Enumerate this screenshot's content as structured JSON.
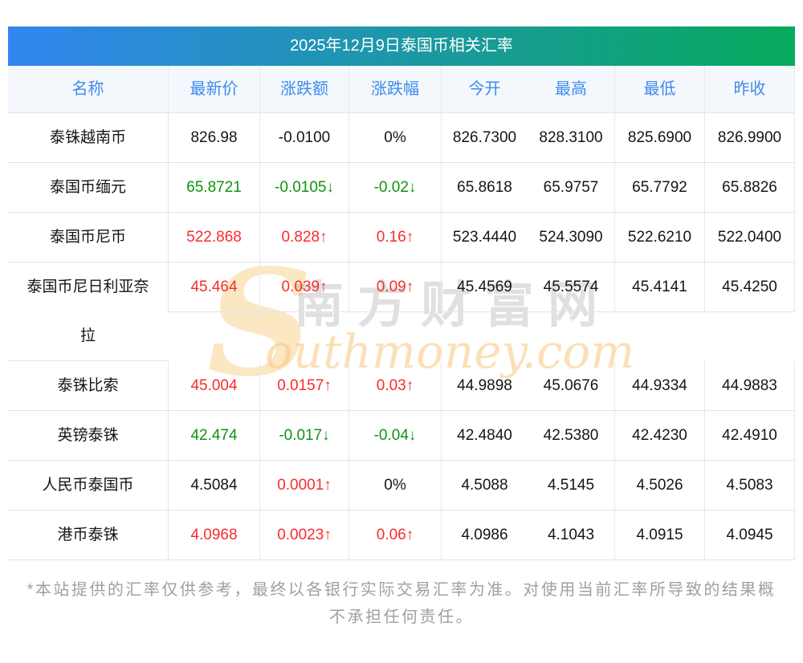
{
  "page": {
    "title_bar": "2025年12月9日泰国币相关汇率",
    "footer": "*本站提供的汇率仅供参考，最终以各银行实际交易汇率为准。对使用当前汇率所导致的结果概不承担任何责任。"
  },
  "watermark": {
    "initial": "S",
    "cn": "南方财富网",
    "en": "outhmoney.com"
  },
  "table": {
    "headers": [
      "名称",
      "最新价",
      "涨跌额",
      "涨跌幅",
      "今开",
      "最高",
      "最低",
      "昨收"
    ],
    "rows": [
      {
        "name": "泰铢越南币",
        "tall": false,
        "cells": [
          {
            "t": "826.98",
            "c": "flat"
          },
          {
            "t": "-0.0100",
            "c": "flat"
          },
          {
            "t": "0%",
            "c": "flat"
          },
          {
            "t": "826.7300"
          },
          {
            "t": "828.3100"
          },
          {
            "t": "825.6900"
          },
          {
            "t": "826.9900"
          }
        ]
      },
      {
        "name": "泰国币缅元",
        "tall": false,
        "cells": [
          {
            "t": "65.8721",
            "c": "down"
          },
          {
            "t": "-0.0105↓",
            "c": "down"
          },
          {
            "t": "-0.02↓",
            "c": "down"
          },
          {
            "t": "65.8618"
          },
          {
            "t": "65.9757"
          },
          {
            "t": "65.7792"
          },
          {
            "t": "65.8826"
          }
        ]
      },
      {
        "name": "泰国币尼币",
        "tall": false,
        "cells": [
          {
            "t": "522.868",
            "c": "up"
          },
          {
            "t": "0.828↑",
            "c": "up"
          },
          {
            "t": "0.16↑",
            "c": "up"
          },
          {
            "t": "523.4440"
          },
          {
            "t": "524.3090"
          },
          {
            "t": "522.6210"
          },
          {
            "t": "522.0400"
          }
        ]
      },
      {
        "name": "泰国币尼日利亚奈拉",
        "tall": true,
        "cells": [
          {
            "t": "45.464",
            "c": "up"
          },
          {
            "t": "0.039↑",
            "c": "up"
          },
          {
            "t": "0.09↑",
            "c": "up"
          },
          {
            "t": "45.4569"
          },
          {
            "t": "45.5574"
          },
          {
            "t": "45.4141"
          },
          {
            "t": "45.4250"
          }
        ]
      },
      {
        "name": "泰铢比索",
        "tall": false,
        "cells": [
          {
            "t": "45.004",
            "c": "up"
          },
          {
            "t": "0.0157↑",
            "c": "up"
          },
          {
            "t": "0.03↑",
            "c": "up"
          },
          {
            "t": "44.9898"
          },
          {
            "t": "45.0676"
          },
          {
            "t": "44.9334"
          },
          {
            "t": "44.9883"
          }
        ]
      },
      {
        "name": "英镑泰铢",
        "tall": false,
        "cells": [
          {
            "t": "42.474",
            "c": "down"
          },
          {
            "t": "-0.017↓",
            "c": "down"
          },
          {
            "t": "-0.04↓",
            "c": "down"
          },
          {
            "t": "42.4840"
          },
          {
            "t": "42.5380"
          },
          {
            "t": "42.4230"
          },
          {
            "t": "42.4910"
          }
        ]
      },
      {
        "name": "人民币泰国币",
        "tall": false,
        "cells": [
          {
            "t": "4.5084",
            "c": "flat"
          },
          {
            "t": "0.0001↑",
            "c": "up"
          },
          {
            "t": "0%",
            "c": "flat"
          },
          {
            "t": "4.5088"
          },
          {
            "t": "4.5145"
          },
          {
            "t": "4.5026"
          },
          {
            "t": "4.5083"
          }
        ]
      },
      {
        "name": "港币泰铢",
        "tall": false,
        "cells": [
          {
            "t": "4.0968",
            "c": "up"
          },
          {
            "t": "0.0023↑",
            "c": "up"
          },
          {
            "t": "0.06↑",
            "c": "up"
          },
          {
            "t": "4.0986"
          },
          {
            "t": "4.1043"
          },
          {
            "t": "4.0915"
          },
          {
            "t": "4.0945"
          }
        ]
      }
    ]
  },
  "colors": {
    "up": "#fa2b2b",
    "down": "#0d930d",
    "flat": "#151515",
    "header_text": "#3e8bef",
    "header_bg": "#f4f7fb",
    "title_grad_left": "#3285f0",
    "title_grad_right": "#07aa5c",
    "border_h": "#dfe4ec",
    "border_v": "#e7e9ee",
    "footer_text": "#a0a0a0"
  }
}
